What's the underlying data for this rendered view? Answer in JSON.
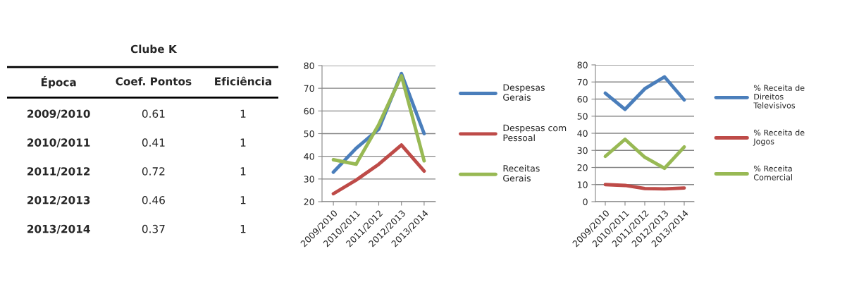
{
  "chart_data": [
    {
      "type": "other",
      "title": "Clube K",
      "categories": [
        "Época",
        "Coef. Pontos",
        "Eficiência"
      ],
      "y_categories": [
        "2009/2010",
        "2010/2011",
        "2011/2012",
        "2012/2013",
        "2013/2014"
      ],
      "cells": [
        [
          "0.61",
          "1"
        ],
        [
          "0.41",
          "1"
        ],
        [
          "0.72",
          "1"
        ],
        [
          "0.46",
          "1"
        ],
        [
          "0.37",
          "1"
        ]
      ]
    },
    {
      "type": "line",
      "categories": [
        "2009/2010",
        "2010/2011",
        "2011/2012",
        "2012/2013",
        "2013/2014"
      ],
      "ylim": [
        20,
        80
      ],
      "yticks": [
        20,
        30,
        40,
        50,
        60,
        70,
        80
      ],
      "grid": "y",
      "legend": "right",
      "marker": "none",
      "line_style": "solid",
      "series": [
        {
          "name": "Despesas Gerais",
          "color": "#4a7ebb",
          "values": [
            33,
            43.5,
            52,
            76.5,
            50
          ]
        },
        {
          "name": "Despesas com Pessoal",
          "color": "#be4b48",
          "values": [
            23.5,
            29.5,
            36.5,
            45,
            33.5
          ]
        },
        {
          "name": "Receitas Gerais",
          "color": "#98b954",
          "values": [
            38.5,
            36.5,
            54,
            75.5,
            38
          ]
        }
      ]
    },
    {
      "type": "line",
      "categories": [
        "2009/2010",
        "2010/2011",
        "2011/2012",
        "2012/2013",
        "2013/2014"
      ],
      "ylim": [
        0,
        80
      ],
      "yticks": [
        0,
        10,
        20,
        30,
        40,
        50,
        60,
        70,
        80
      ],
      "grid": "y",
      "legend": "right",
      "marker": "none",
      "line_style": "solid",
      "series": [
        {
          "name": "% Receita de Direitos Televisivos",
          "color": "#4a7ebb",
          "values": [
            63.5,
            54,
            66,
            73,
            59.5
          ]
        },
        {
          "name": "% Receita de Jogos",
          "color": "#be4b48",
          "values": [
            10,
            9.5,
            7.7,
            7.5,
            8
          ]
        },
        {
          "name": "% Receita Comercial",
          "color": "#98b954",
          "values": [
            26.5,
            36.5,
            26,
            19.5,
            32
          ]
        }
      ]
    }
  ]
}
